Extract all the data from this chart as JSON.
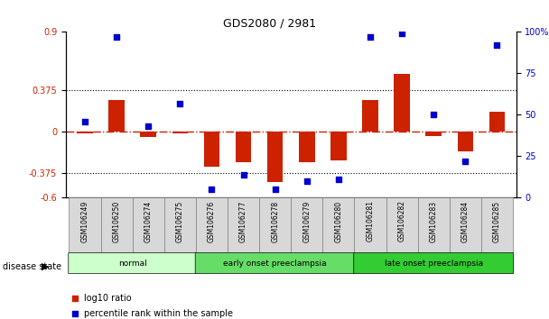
{
  "title": "GDS2080 / 2981",
  "samples": [
    "GSM106249",
    "GSM106250",
    "GSM106274",
    "GSM106275",
    "GSM106276",
    "GSM106277",
    "GSM106278",
    "GSM106279",
    "GSM106280",
    "GSM106281",
    "GSM106282",
    "GSM106283",
    "GSM106284",
    "GSM106285"
  ],
  "log10_ratio": [
    -0.02,
    0.28,
    -0.05,
    -0.02,
    -0.32,
    -0.28,
    -0.46,
    -0.28,
    -0.26,
    0.28,
    0.52,
    -0.04,
    -0.18,
    0.18
  ],
  "percentile_rank": [
    46,
    97,
    43,
    57,
    5,
    14,
    5,
    10,
    11,
    97,
    99,
    50,
    22,
    92
  ],
  "groups": [
    {
      "label": "normal",
      "start": 0,
      "end": 4,
      "color": "#ccffcc"
    },
    {
      "label": "early onset preeclampsia",
      "start": 4,
      "end": 9,
      "color": "#66dd66"
    },
    {
      "label": "late onset preeclampsia",
      "start": 9,
      "end": 14,
      "color": "#33cc33"
    }
  ],
  "bar_color": "#cc2200",
  "dot_color": "#0000cc",
  "hline_color": "#cc2200",
  "dotted_line_color": "#000000",
  "ylim_left": [
    -0.6,
    0.9
  ],
  "ylim_right": [
    0,
    100
  ],
  "yticks_left": [
    -0.6,
    -0.375,
    0,
    0.375,
    0.9
  ],
  "yticks_right": [
    0,
    25,
    50,
    75,
    100
  ],
  "ytick_labels_left": [
    "-0.6",
    "-0.375",
    "0",
    "0.375",
    "0.9"
  ],
  "ytick_labels_right": [
    "0",
    "25",
    "50",
    "75",
    "100%"
  ],
  "hline_yticks": [
    -0.375,
    0.375
  ],
  "legend_items": [
    "log10 ratio",
    "percentile rank within the sample"
  ],
  "disease_state_label": "disease state",
  "bg_color": "#ffffff",
  "plot_bg": "#ffffff"
}
